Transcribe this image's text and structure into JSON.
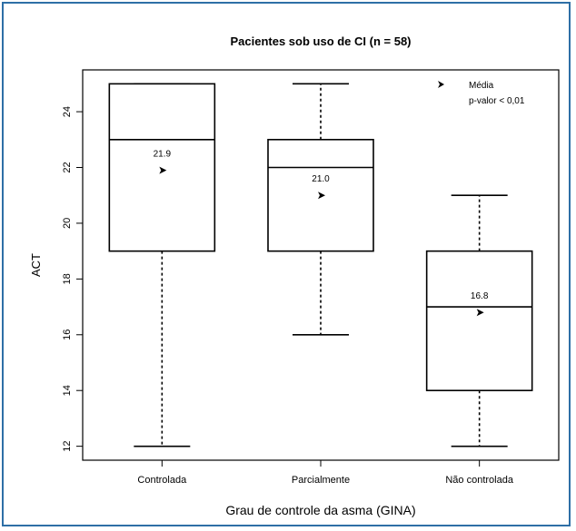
{
  "chart_data": {
    "type": "boxplot",
    "title": "Pacientes sob uso de CI (n = 58)",
    "xlabel": "Grau de controle da asma (GINA)",
    "ylabel": "ACT",
    "ylim": [
      11.5,
      25.5
    ],
    "yticks": [
      12,
      14,
      16,
      18,
      20,
      22,
      24
    ],
    "categories": [
      "Controlada",
      "Parcialmente",
      "Não controlada"
    ],
    "boxes": [
      {
        "min": 12,
        "q1": 19,
        "median": 23,
        "q3": 25,
        "max": 25,
        "mean": 21.9,
        "mean_label": "21.9"
      },
      {
        "min": 16,
        "q1": 19,
        "median": 22,
        "q3": 23,
        "max": 25,
        "mean": 21.0,
        "mean_label": "21.0"
      },
      {
        "min": 12,
        "q1": 14,
        "median": 17,
        "q3": 19,
        "max": 21,
        "mean": 16.8,
        "mean_label": "16.8"
      }
    ],
    "legend": {
      "position": "top-right",
      "marker_label": "Média",
      "note": "p-valor < 0,01"
    },
    "colors": {
      "frame": "#2e6fa6",
      "marks": "#000000",
      "background": "#ffffff"
    }
  }
}
